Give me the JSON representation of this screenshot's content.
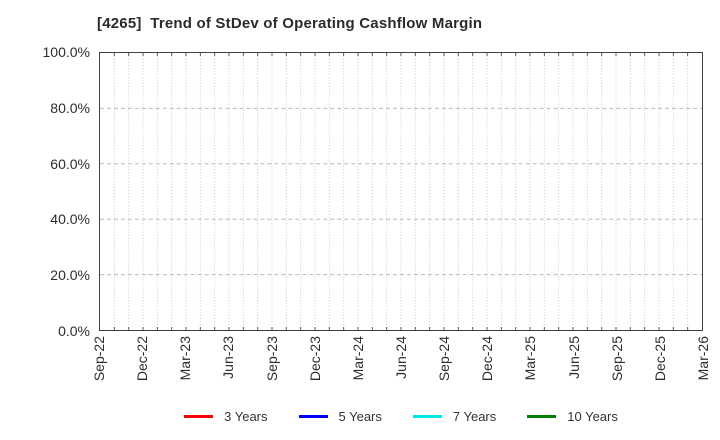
{
  "page": {
    "background": "#ffffff"
  },
  "chart_data": {
    "type": "line",
    "title": "[4265]  Trend of StDev of Operating Cashflow Margin",
    "title_color": "#2b2b2b",
    "xlabel": "",
    "ylabel": "",
    "ylim": [
      0,
      100
    ],
    "y_ticks": [
      {
        "label": "100.0%",
        "value": 100
      },
      {
        "label": "80.0%",
        "value": 80
      },
      {
        "label": "60.0%",
        "value": 60
      },
      {
        "label": "40.0%",
        "value": 40
      },
      {
        "label": "20.0%",
        "value": 20
      },
      {
        "label": "0.0%",
        "value": 0
      }
    ],
    "y_gridline_values": [
      80,
      60,
      40,
      20
    ],
    "x_tick_labels": [
      "Sep-22",
      "Dec-22",
      "Mar-23",
      "Jun-23",
      "Sep-23",
      "Dec-23",
      "Mar-24",
      "Jun-24",
      "Sep-24",
      "Dec-24",
      "Mar-25",
      "Jun-25",
      "Sep-25",
      "Dec-25",
      "Mar-26"
    ],
    "x_months_total": 42,
    "x_tick_every_months": 3,
    "grid": {
      "on": true,
      "vertical_style": "dotted-monthly",
      "horizontal_style": "dashed",
      "color_vertical": "#c9c9c9",
      "color_horizontal": "#b9b9b9",
      "tick_color": "#5a5a5a"
    },
    "axis_color": "#3f3f3f",
    "tick_label_color": "#2d2d2d",
    "legend_position": "bottom-center",
    "series": [
      {
        "name": "3 Years",
        "color": "#ff0000",
        "x": [],
        "values": []
      },
      {
        "name": "5 Years",
        "color": "#0000ff",
        "x": [],
        "values": []
      },
      {
        "name": "7 Years",
        "color": "#00e5e5",
        "x": [],
        "values": []
      },
      {
        "name": "10 Years",
        "color": "#008000",
        "x": [],
        "values": []
      }
    ],
    "plotted_data_visible": false
  }
}
